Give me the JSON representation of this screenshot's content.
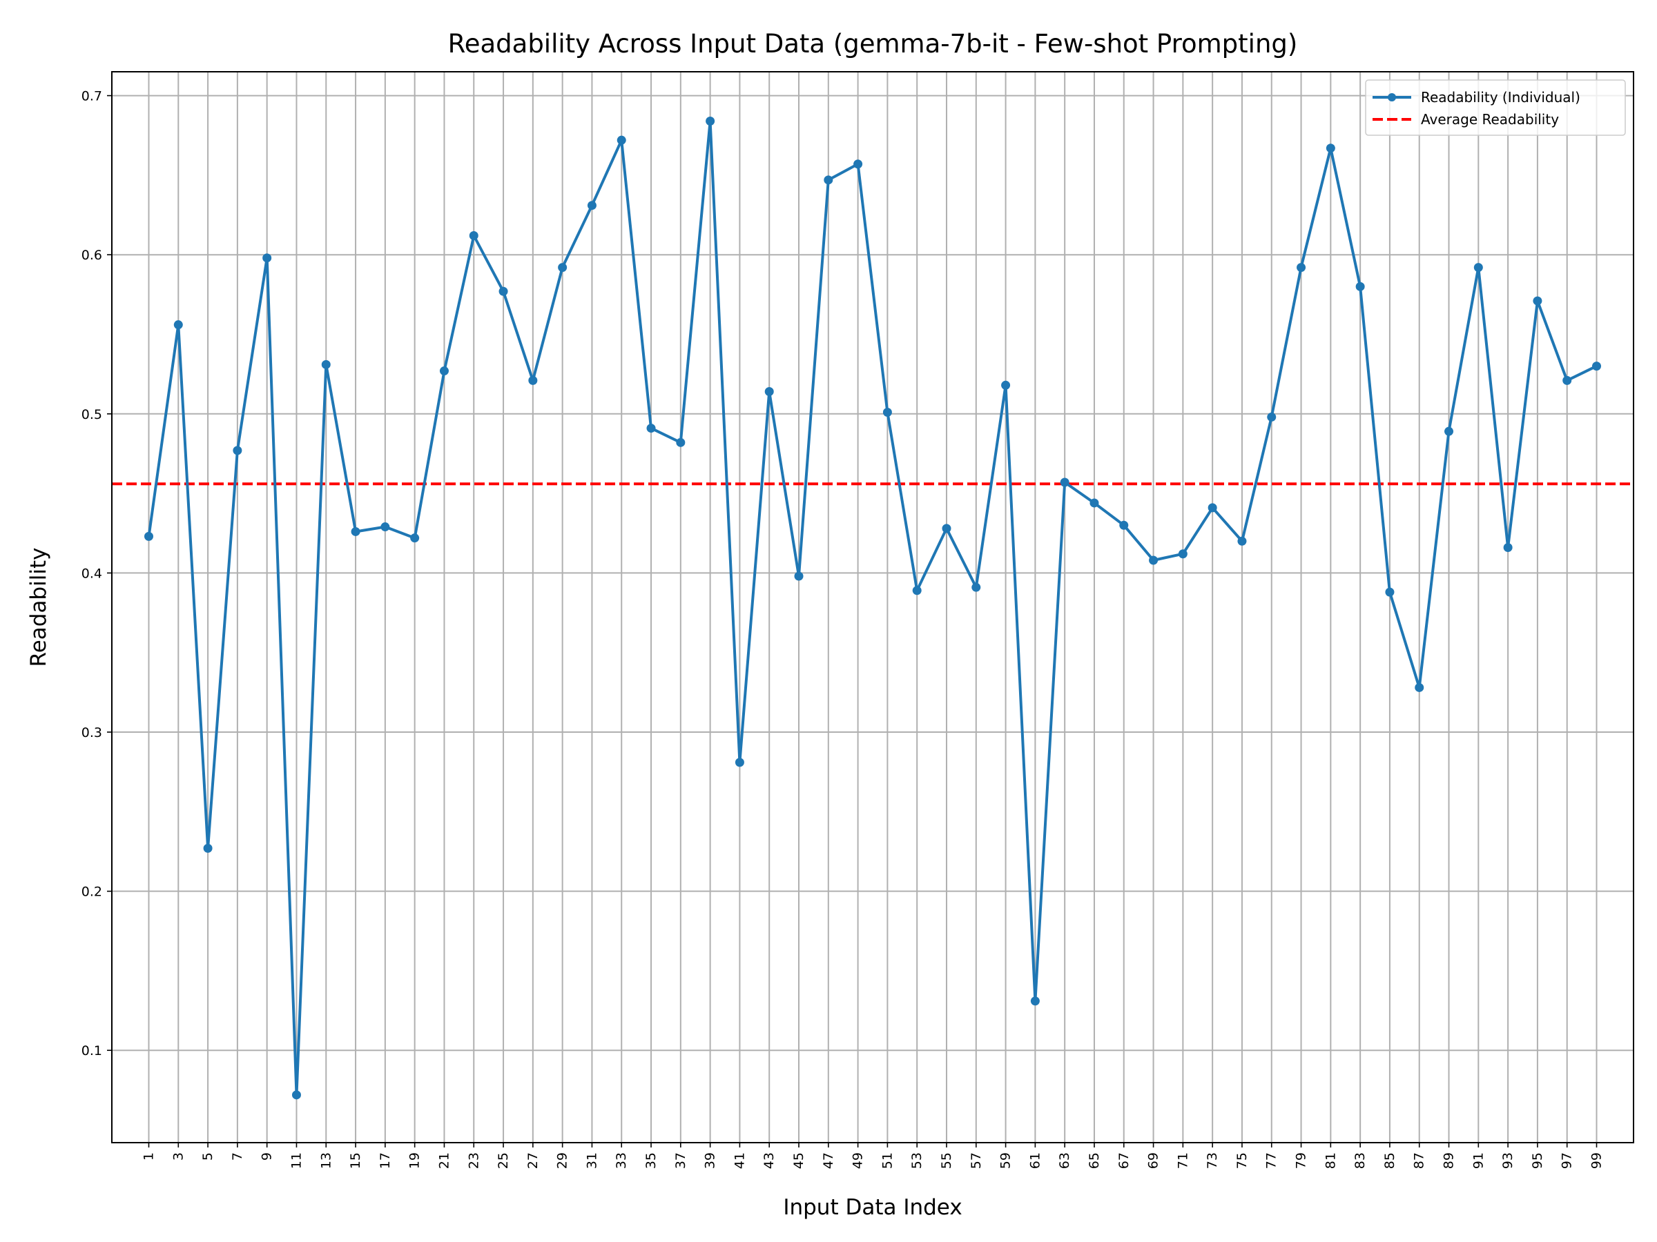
{
  "chart_data": {
    "type": "line",
    "title": "Readability Across Input Data (gemma-7b-it - Few-shot Prompting)",
    "xlabel": "Input Data Index",
    "ylabel": "Readability",
    "xlim": [
      -1.5,
      101.5
    ],
    "ylim": [
      0.042,
      0.715
    ],
    "yticks": [
      0.1,
      0.2,
      0.3,
      0.4,
      0.5,
      0.6,
      0.7
    ],
    "xticks": [
      1,
      3,
      5,
      7,
      9,
      11,
      13,
      15,
      17,
      19,
      21,
      23,
      25,
      27,
      29,
      31,
      33,
      35,
      37,
      39,
      41,
      43,
      45,
      47,
      49,
      51,
      53,
      55,
      57,
      59,
      61,
      63,
      65,
      67,
      69,
      71,
      73,
      75,
      77,
      79,
      81,
      83,
      85,
      87,
      89,
      91,
      93,
      95,
      97,
      99
    ],
    "grid": true,
    "legend_position": "upper right",
    "series": [
      {
        "name": "Readability (Individual)",
        "color": "#1f77b4",
        "style": "line-with-markers",
        "x": [
          1,
          3,
          5,
          7,
          9,
          11,
          13,
          15,
          17,
          19,
          21,
          23,
          25,
          27,
          29,
          31,
          33,
          35,
          37,
          39,
          41,
          43,
          45,
          47,
          49,
          51,
          53,
          55,
          57,
          59,
          61,
          63,
          65,
          67,
          69,
          71,
          73,
          75,
          77,
          79,
          81,
          83,
          85,
          87,
          89,
          91,
          93,
          95,
          97,
          99
        ],
        "values": [
          0.423,
          0.556,
          0.227,
          0.477,
          0.598,
          0.072,
          0.531,
          0.426,
          0.429,
          0.422,
          0.527,
          0.612,
          0.577,
          0.521,
          0.592,
          0.631,
          0.672,
          0.491,
          0.482,
          0.684,
          0.281,
          0.514,
          0.398,
          0.647,
          0.657,
          0.501,
          0.389,
          0.428,
          0.391,
          0.518,
          0.131,
          0.457,
          0.444,
          0.43,
          0.408,
          0.412,
          0.441,
          0.42,
          0.498,
          0.592,
          0.667,
          0.58,
          0.388,
          0.328,
          0.489,
          0.592,
          0.416,
          0.571,
          0.521,
          0.53
        ]
      },
      {
        "name": "Average Readability",
        "color": "#ff0000",
        "style": "dashed",
        "value": 0.456
      }
    ]
  }
}
